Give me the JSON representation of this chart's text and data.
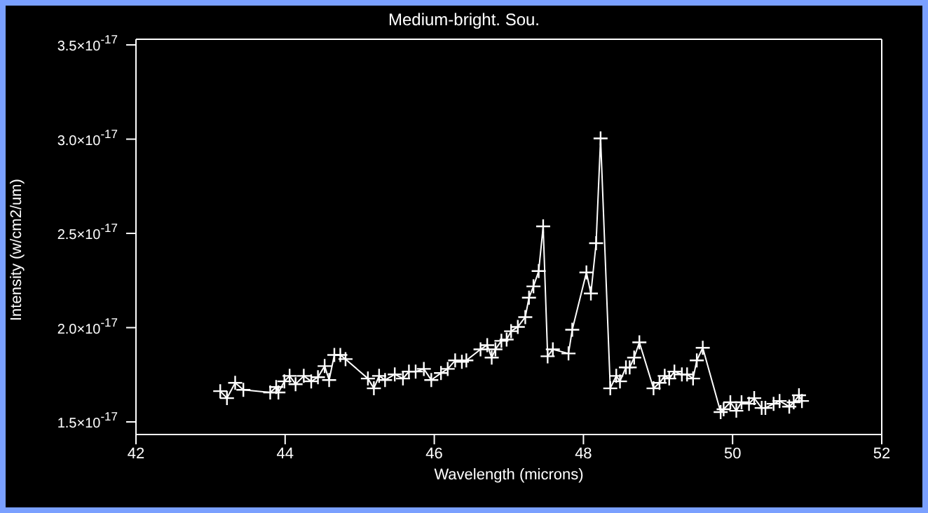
{
  "chart_data": {
    "type": "line",
    "title": "Medium-bright. Sou.",
    "xlabel": "Wavelength (microns)",
    "ylabel": "Intensity (w/cm2/um)",
    "x": [
      43.13,
      43.22,
      43.33,
      43.44,
      43.8,
      43.88,
      43.91,
      43.99,
      44.06,
      44.14,
      44.25,
      44.35,
      44.44,
      44.53,
      44.59,
      44.66,
      44.74,
      44.81,
      45.11,
      45.19,
      45.26,
      45.34,
      45.47,
      45.58,
      45.66,
      45.75,
      45.86,
      45.96,
      46.09,
      46.18,
      46.28,
      46.37,
      46.43,
      46.62,
      46.71,
      46.77,
      46.82,
      46.9,
      46.97,
      47.03,
      47.12,
      47.22,
      47.27,
      47.33,
      47.4,
      47.46,
      47.52,
      47.59,
      47.8,
      47.85,
      48.04,
      48.1,
      48.17,
      48.23,
      48.36,
      48.44,
      48.49,
      48.57,
      48.62,
      48.68,
      48.75,
      48.94,
      49.02,
      49.09,
      49.15,
      49.22,
      49.32,
      49.39,
      49.47,
      49.52,
      49.6,
      49.84,
      49.88,
      49.97,
      50.05,
      50.12,
      50.22,
      50.29,
      50.39,
      50.44,
      50.55,
      50.63,
      50.76,
      50.82,
      50.89,
      50.93
    ],
    "series": [
      {
        "color": "#ffffff",
        "values": [
          1.663e-17,
          1.626e-17,
          1.707e-17,
          1.67e-17,
          1.656e-17,
          1.685e-17,
          1.656e-17,
          1.715e-17,
          1.744e-17,
          1.7e-17,
          1.744e-17,
          1.715e-17,
          1.737e-17,
          1.796e-17,
          1.722e-17,
          1.855e-17,
          1.855e-17,
          1.833e-17,
          1.73e-17,
          1.678e-17,
          1.744e-17,
          1.722e-17,
          1.752e-17,
          1.73e-17,
          1.767e-17,
          1.767e-17,
          1.781e-17,
          1.722e-17,
          1.759e-17,
          1.781e-17,
          1.826e-17,
          1.819e-17,
          1.826e-17,
          1.885e-17,
          1.907e-17,
          1.841e-17,
          1.885e-17,
          1.93e-17,
          1.937e-17,
          1.981e-17,
          2.004e-17,
          2.056e-17,
          2.159e-17,
          2.219e-17,
          2.3e-17,
          2.537e-17,
          1.848e-17,
          1.885e-17,
          1.863e-17,
          1.989e-17,
          2.293e-17,
          2.181e-17,
          2.448e-17,
          3.004e-17,
          1.678e-17,
          1.744e-17,
          1.715e-17,
          1.789e-17,
          1.789e-17,
          1.841e-17,
          1.922e-17,
          1.678e-17,
          1.707e-17,
          1.744e-17,
          1.73e-17,
          1.767e-17,
          1.752e-17,
          1.752e-17,
          1.73e-17,
          1.826e-17,
          1.893e-17,
          1.552e-17,
          1.567e-17,
          1.604e-17,
          1.559e-17,
          1.604e-17,
          1.596e-17,
          1.626e-17,
          1.574e-17,
          1.574e-17,
          1.596e-17,
          1.611e-17,
          1.581e-17,
          1.604e-17,
          1.641e-17,
          1.611e-17
        ]
      }
    ],
    "xlim": [
      42,
      52
    ],
    "xticks": [
      42,
      44,
      46,
      48,
      50,
      52
    ],
    "ylim": [
      1.433e-17,
      3.53e-17
    ],
    "yticks": [
      {
        "value": 1.5e-17,
        "label": "1.5×10$^{-17}$"
      },
      {
        "value": 2e-17,
        "label": "2.0×10$^{-17}$"
      },
      {
        "value": 2.5e-17,
        "label": "2.5×10$^{-17}$"
      },
      {
        "value": 3e-17,
        "label": "3.0×10$^{-17}$"
      },
      {
        "value": 3.5e-17,
        "label": "3.5×10$^{-17}$"
      }
    ],
    "marker": "cross",
    "line_style": "solid"
  }
}
